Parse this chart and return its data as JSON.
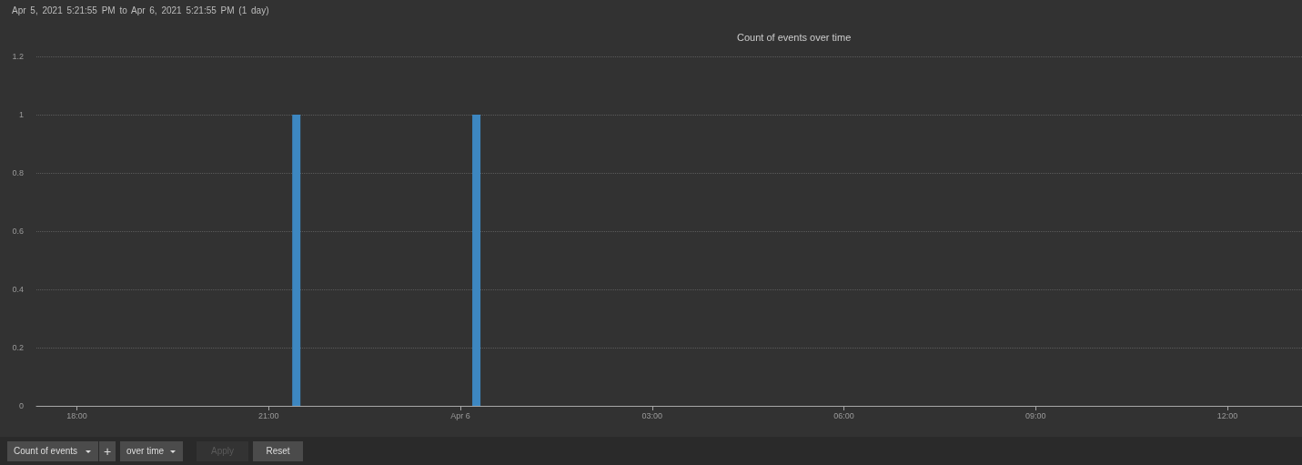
{
  "chart_data": {
    "type": "bar",
    "title": "Count of events over time",
    "subtitle": "Apr 5, 2021 5:21:55 PM to Apr 6, 2021 5:21:55 PM (1 day)",
    "x": [
      "2021-04-05T21:26",
      "2021-04-06T00:15"
    ],
    "values": [
      1,
      1
    ],
    "color": "#3d87c1",
    "xlim": [
      "2021-04-05T17:22",
      "2021-04-06T13:10"
    ],
    "xticks": [
      {
        "value": "2021-04-05T18:00",
        "label": "18:00"
      },
      {
        "value": "2021-04-05T21:00",
        "label": "21:00"
      },
      {
        "value": "2021-04-06T00:00",
        "label": "Apr 6"
      },
      {
        "value": "2021-04-06T03:00",
        "label": "03:00"
      },
      {
        "value": "2021-04-06T06:00",
        "label": "06:00"
      },
      {
        "value": "2021-04-06T09:00",
        "label": "09:00"
      },
      {
        "value": "2021-04-06T12:00",
        "label": "12:00"
      }
    ],
    "ylim": [
      0,
      1.2
    ],
    "yticks": [
      0,
      0.2,
      0.4,
      0.6,
      0.8,
      1,
      1.2
    ],
    "grid": "y",
    "annotations": [
      "Count of events",
      "+",
      "over time",
      "Apply",
      "Reset"
    ]
  }
}
